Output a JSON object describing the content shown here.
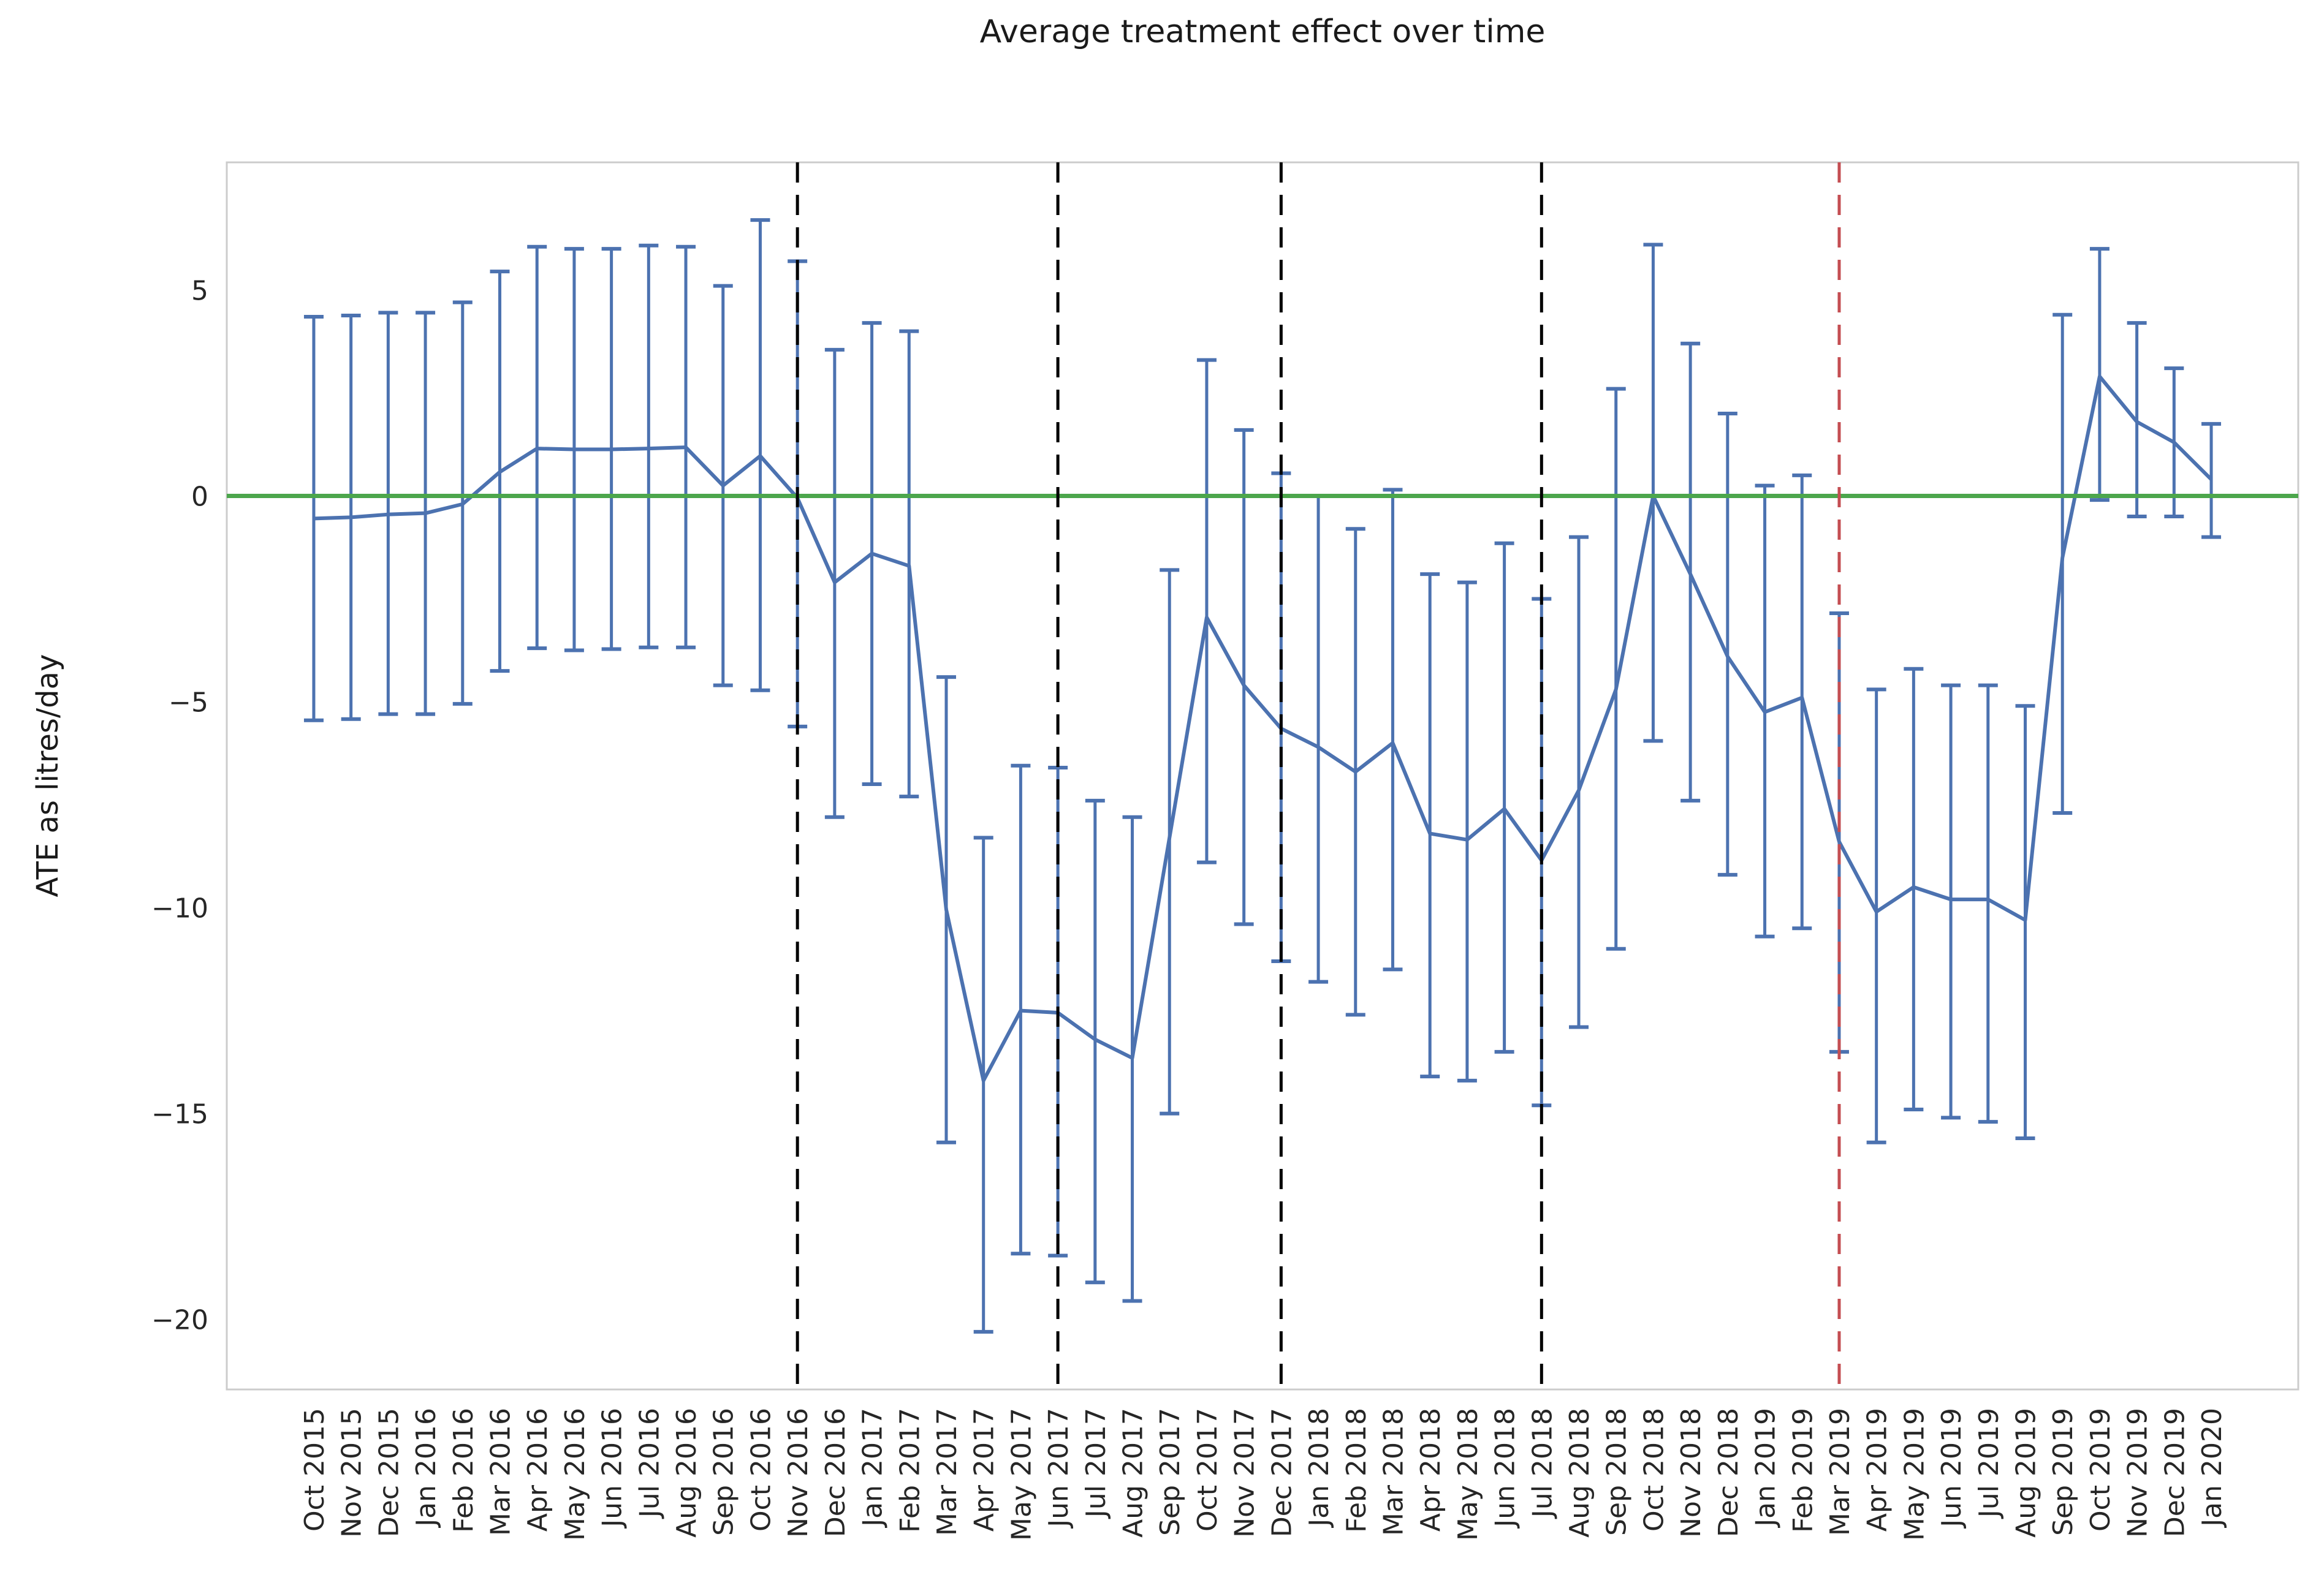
{
  "figure": {
    "title": "Average treatment effect over time",
    "y_axis_label": "ATE as litres/day",
    "background_color": "#ffffff"
  },
  "colors": {
    "series_blue": "#4C72B0",
    "zero_line_green": "#4CA64C",
    "event_line_black": "#000000",
    "treatment_line_red": "#C44E52",
    "spine_gray": "#CCCCCC",
    "text": "#262626"
  },
  "chart_data": {
    "type": "line",
    "subtype": "errorbar",
    "title": "Average treatment effect over time",
    "xlabel": "",
    "ylabel": "ATE as litres/day",
    "grid": false,
    "legend": false,
    "ylim": [
      -21.7,
      8.1
    ],
    "yticks": [
      5,
      0,
      -5,
      -10,
      -15,
      -20
    ],
    "ytick_labels": [
      "5",
      "0",
      "−5",
      "−10",
      "−15",
      "−20"
    ],
    "x": [
      "Oct 2015",
      "Nov 2015",
      "Dec 2015",
      "Jan 2016",
      "Feb 2016",
      "Mar 2016",
      "Apr 2016",
      "May 2016",
      "Jun 2016",
      "Jul 2016",
      "Aug 2016",
      "Sep 2016",
      "Oct 2016",
      "Nov 2016",
      "Dec 2016",
      "Jan 2017",
      "Feb 2017",
      "Mar 2017",
      "Apr 2017",
      "May 2017",
      "Jun 2017",
      "Jul 2017",
      "Aug 2017",
      "Sep 2017",
      "Oct 2017",
      "Nov 2017",
      "Dec 2017",
      "Jan 2018",
      "Feb 2018",
      "Mar 2018",
      "Apr 2018",
      "May 2018",
      "Jun 2018",
      "Jul 2018",
      "Aug 2018",
      "Sep 2018",
      "Oct 2018",
      "Nov 2018",
      "Dec 2018",
      "Jan 2019",
      "Feb 2019",
      "Mar 2019",
      "Apr 2019",
      "May 2019",
      "Jun 2019",
      "Jul 2019",
      "Aug 2019",
      "Sep 2019",
      "Oct 2019",
      "Nov 2019",
      "Dec 2019",
      "Jan 2020"
    ],
    "series": [
      {
        "name": "ATE",
        "values": [
          -0.55,
          -0.52,
          -0.45,
          -0.42,
          -0.2,
          0.58,
          1.15,
          1.13,
          1.13,
          1.15,
          1.18,
          0.25,
          0.97,
          -0.05,
          -2.1,
          -1.4,
          -1.7,
          -10.05,
          -14.2,
          -12.5,
          -12.55,
          -13.2,
          -13.65,
          -8.3,
          -2.95,
          -4.6,
          -5.65,
          -6.1,
          -6.7,
          -6.0,
          -8.2,
          -8.35,
          -7.6,
          -8.85,
          -7.15,
          -4.7,
          0.0,
          -1.9,
          -3.9,
          -5.25,
          -4.9,
          -8.4,
          -10.1,
          -9.5,
          -9.8,
          -9.8,
          -10.3,
          -1.5,
          2.9,
          1.8,
          1.3,
          0.4
        ]
      },
      {
        "name": "CI lower",
        "values": [
          -5.45,
          -5.42,
          -5.3,
          -5.3,
          -5.05,
          -4.25,
          -3.7,
          -3.75,
          -3.72,
          -3.68,
          -3.68,
          -4.6,
          -4.72,
          -5.6,
          -7.8,
          -7.0,
          -7.3,
          -15.7,
          -20.3,
          -18.4,
          -18.45,
          -19.1,
          -19.55,
          -15.0,
          -8.9,
          -10.4,
          -11.3,
          -11.8,
          -12.6,
          -11.5,
          -14.1,
          -14.2,
          -13.5,
          -14.8,
          -12.9,
          -11.0,
          -5.95,
          -7.4,
          -9.2,
          -10.7,
          -10.5,
          -13.5,
          -15.7,
          -14.9,
          -15.1,
          -15.2,
          -15.6,
          -7.7,
          -0.1,
          -0.5,
          -0.5,
          -1.0
        ]
      },
      {
        "name": "CI upper",
        "values": [
          4.35,
          4.38,
          4.45,
          4.45,
          4.7,
          5.45,
          6.05,
          6.0,
          6.0,
          6.08,
          6.05,
          5.1,
          6.7,
          5.7,
          3.55,
          4.2,
          4.0,
          -4.4,
          -8.3,
          -6.55,
          -6.6,
          -7.4,
          -7.8,
          -1.8,
          3.3,
          1.6,
          0.55,
          0.0,
          -0.8,
          0.15,
          -1.9,
          -2.1,
          -1.15,
          -2.5,
          -1.0,
          2.6,
          6.1,
          3.7,
          2.0,
          0.25,
          0.5,
          -2.85,
          -4.7,
          -4.2,
          -4.6,
          -4.6,
          -5.1,
          4.4,
          6.0,
          4.2,
          3.1,
          1.75
        ]
      }
    ],
    "reference_lines": [
      {
        "axis": "y",
        "value": 0,
        "style": "solid",
        "color": "#4CA64C",
        "name": "zero-line"
      },
      {
        "axis": "x",
        "label": "Nov 2016",
        "style": "dashed",
        "color": "#000000",
        "name": "event-line-nov-2016"
      },
      {
        "axis": "x",
        "label": "Jun 2017",
        "style": "dashed",
        "color": "#000000",
        "name": "event-line-jun-2017"
      },
      {
        "axis": "x",
        "label": "Dec 2017",
        "style": "dashed",
        "color": "#000000",
        "name": "event-line-dec-2017"
      },
      {
        "axis": "x",
        "label": "Jul 2018",
        "style": "dashed",
        "color": "#000000",
        "name": "event-line-jul-2018"
      },
      {
        "axis": "x",
        "label": "Mar 2019",
        "style": "dashed",
        "color": "#C44E52",
        "name": "event-line-mar-2019"
      }
    ],
    "layout_hints": {
      "x_tick_rotation": 90,
      "error_bar_caps": true,
      "plot_background": "#ffffff"
    }
  }
}
